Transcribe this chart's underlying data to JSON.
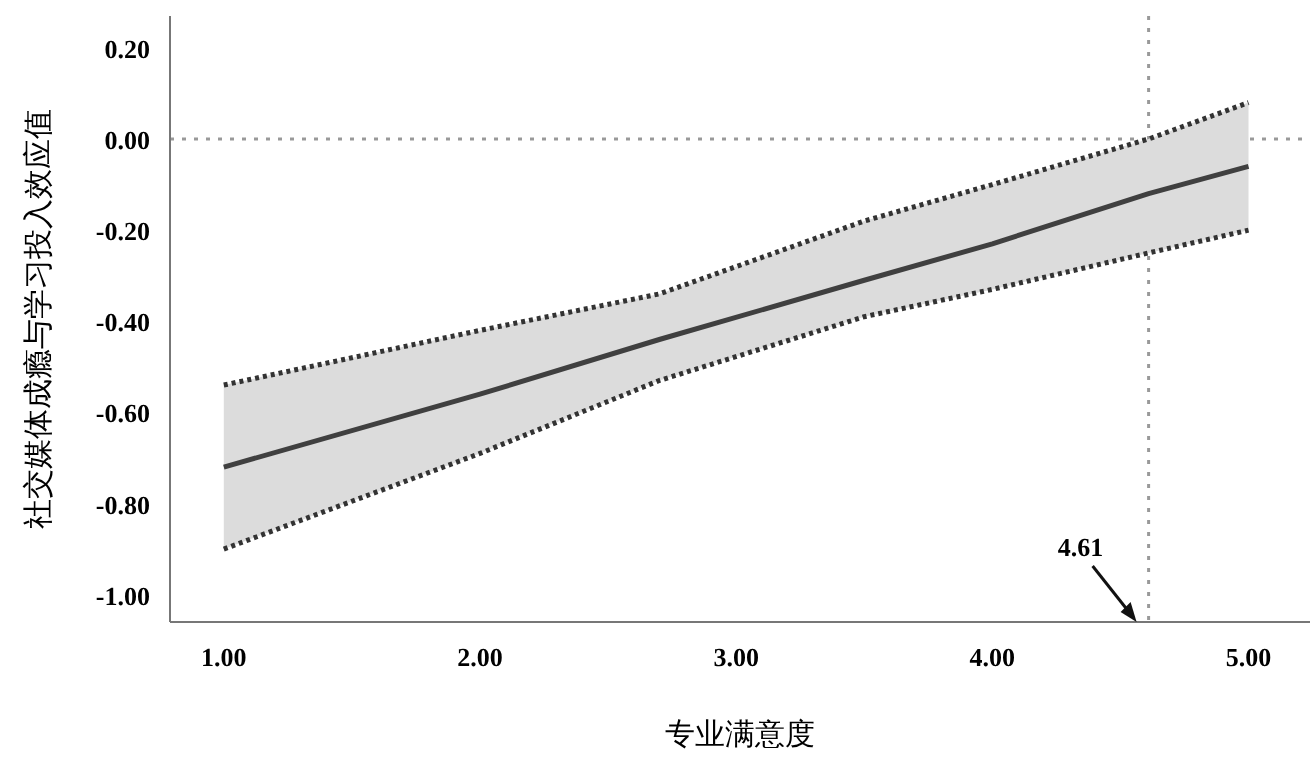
{
  "chart_data": {
    "type": "line",
    "xlabel": "专业满意度",
    "ylabel": "社交媒体成瘾与学习投入效应值",
    "xlim": [
      0.79,
      5.24
    ],
    "ylim": [
      -1.06,
      0.27
    ],
    "xticks": [
      {
        "value": 1,
        "label": "1.00"
      },
      {
        "value": 2,
        "label": "2.00"
      },
      {
        "value": 3,
        "label": "3.00"
      },
      {
        "value": 4,
        "label": "4.00"
      },
      {
        "value": 5,
        "label": "5.00"
      }
    ],
    "yticks": [
      {
        "value": 0.2,
        "label": "0.20"
      },
      {
        "value": 0,
        "label": "0.00"
      },
      {
        "value": -0.2,
        "label": "-0.20"
      },
      {
        "value": -0.4,
        "label": "-0.40"
      },
      {
        "value": -0.6,
        "label": "-0.60"
      },
      {
        "value": -0.8,
        "label": "-0.80"
      },
      {
        "value": -1,
        "label": "-1.00"
      }
    ],
    "series": [
      {
        "color": "#404040",
        "x": [
          1,
          2,
          2.7,
          3.5,
          4,
          4.61,
          5
        ],
        "values": [
          -0.72,
          -0.56,
          -0.44,
          -0.31,
          -0.23,
          -0.12,
          -0.06
        ],
        "lower": [
          -0.9,
          -0.69,
          -0.53,
          -0.39,
          -0.33,
          -0.25,
          -0.2
        ],
        "upper": [
          -0.54,
          -0.42,
          -0.34,
          -0.18,
          -0.1,
          0.0,
          0.08
        ]
      },
      {
        "color": "#333333",
        "line_style": "dotted",
        "x": [
          1,
          2,
          2.7,
          3.5,
          4,
          4.61,
          5
        ],
        "values": [
          -0.54,
          -0.42,
          -0.34,
          -0.18,
          -0.1,
          0.0,
          0.08
        ]
      },
      {
        "color": "#333333",
        "line_style": "dotted",
        "x": [
          1,
          2,
          2.7,
          3.5,
          4,
          4.61,
          5
        ],
        "values": [
          -0.9,
          -0.69,
          -0.53,
          -0.39,
          -0.33,
          -0.25,
          -0.2
        ]
      }
    ],
    "ref_lines": [
      {
        "axis": "y",
        "value": 0,
        "color": "#999999",
        "line_style": "dotted"
      },
      {
        "axis": "x",
        "value": 4.61,
        "color": "#999999",
        "line_style": "dotted"
      }
    ],
    "annotations": [
      {
        "text": "4.61",
        "x": 4.61,
        "y": -1.06
      }
    ],
    "line_style": "solid"
  }
}
